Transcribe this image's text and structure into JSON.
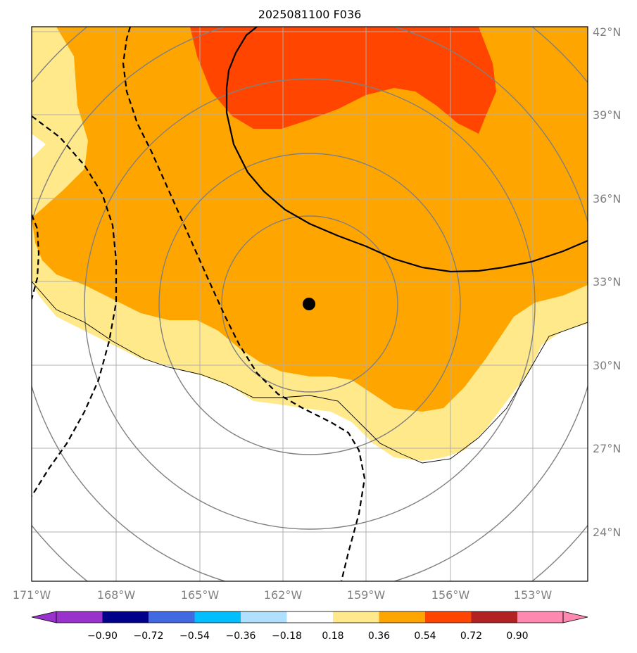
{
  "title": "2025081100 F036",
  "map": {
    "lon_labels": [
      "171°W",
      "168°W",
      "165°W",
      "162°W",
      "159°W",
      "156°W",
      "153°W"
    ],
    "lat_labels": [
      "42°N",
      "39°N",
      "36°N",
      "33°N",
      "30°N",
      "27°N",
      "24°N"
    ],
    "center_marker": {
      "lon": -161,
      "lat": 32.2
    },
    "shading_colors": {
      "0.18-0.36": "#ffe98a",
      "0.36-0.54": "#ffa500",
      "0.54-0.72": "#ff4500"
    }
  },
  "colorbar": {
    "ticks": [
      "−0.90",
      "−0.72",
      "−0.54",
      "−0.36",
      "−0.18",
      "0.18",
      "0.36",
      "0.54",
      "0.72",
      "0.90"
    ],
    "colors": [
      "#9932cc",
      "#00008b",
      "#4169e1",
      "#00bfff",
      "#b0e0ff",
      "#ffffff",
      "#ffe98a",
      "#ffa500",
      "#ff4500",
      "#b22222",
      "#ff88b0"
    ]
  }
}
